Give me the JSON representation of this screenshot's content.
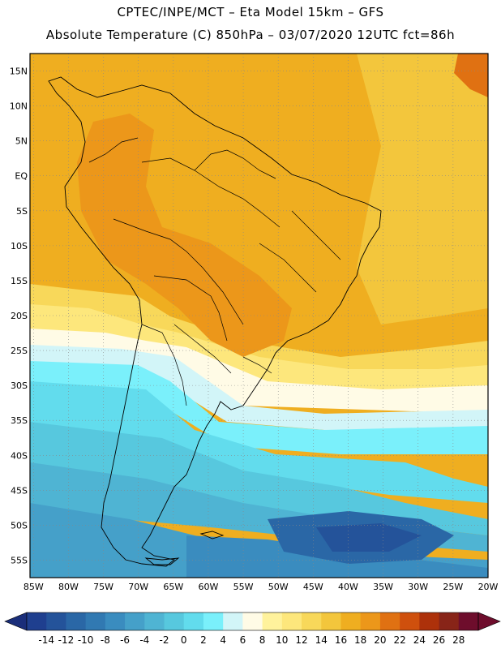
{
  "header": {
    "line1": "CPTEC/INPE/MCT –  Eta Model 15km – GFS",
    "line2": "Absolute Temperature (C) 850hPa – 03/07/2020 12UTC fct=86h"
  },
  "map": {
    "lat_labels": [
      "15N",
      "10N",
      "5N",
      "EQ",
      "5S",
      "10S",
      "15S",
      "20S",
      "25S",
      "30S",
      "35S",
      "40S",
      "45S",
      "50S",
      "55S"
    ],
    "lon_labels": [
      "85W",
      "80W",
      "75W",
      "70W",
      "65W",
      "60W",
      "55W",
      "50W",
      "45W",
      "40W",
      "35W",
      "30W",
      "25W",
      "20W"
    ],
    "lat_range": [
      17.5,
      -57.5
    ],
    "lon_range": [
      -85.5,
      -20
    ]
  },
  "colorbar": {
    "labels": [
      "-14",
      "-12",
      "-10",
      "-8",
      "-6",
      "-4",
      "-2",
      "0",
      "2",
      "4",
      "6",
      "8",
      "10",
      "12",
      "14",
      "16",
      "18",
      "20",
      "22",
      "24",
      "26",
      "28"
    ],
    "colors": [
      "#1f3f8f",
      "#24539a",
      "#2a67a6",
      "#3179b2",
      "#3a8cbf",
      "#45a0c9",
      "#4fb4d3",
      "#57c8de",
      "#62dced",
      "#7af0fb",
      "#d2f5f8",
      "#fffbe6",
      "#fff29c",
      "#fde77c",
      "#f8d85a",
      "#f3c63c",
      "#efae20",
      "#ec971a",
      "#e07112",
      "#cf500d",
      "#ad310a",
      "#882418",
      "#6e0d2c"
    ],
    "left_arrow_color": "#1a2e7a",
    "right_arrow_color": "#6e0d2c"
  }
}
